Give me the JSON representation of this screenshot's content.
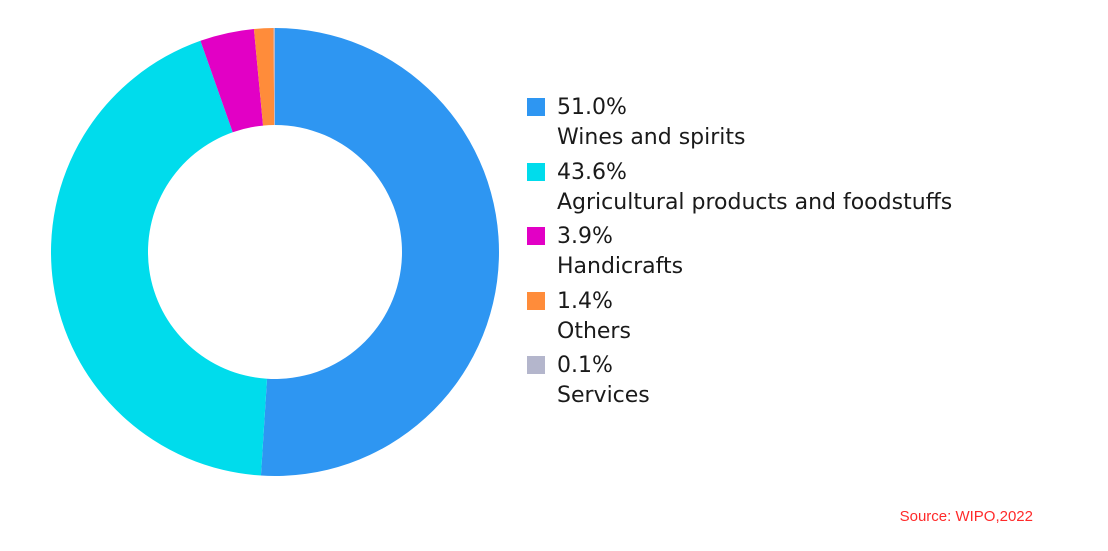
{
  "chart_data": {
    "type": "pie",
    "variant": "donut",
    "categories": [
      "Wines and spirits",
      "Agricultural products and foodstuffs",
      "Handicrafts",
      "Others",
      "Services"
    ],
    "values": [
      51.0,
      43.6,
      3.9,
      1.4,
      0.1
    ],
    "labels": [
      "51.0%",
      "43.6%",
      "3.9%",
      "1.4%",
      "0.1%"
    ],
    "colors": [
      "#2E96F2",
      "#00DCEC",
      "#E200C5",
      "#FF8C3A",
      "#B4B6CC"
    ],
    "start": "top, clockwise",
    "legend": "right"
  },
  "source": "Source: WIPO,2022"
}
